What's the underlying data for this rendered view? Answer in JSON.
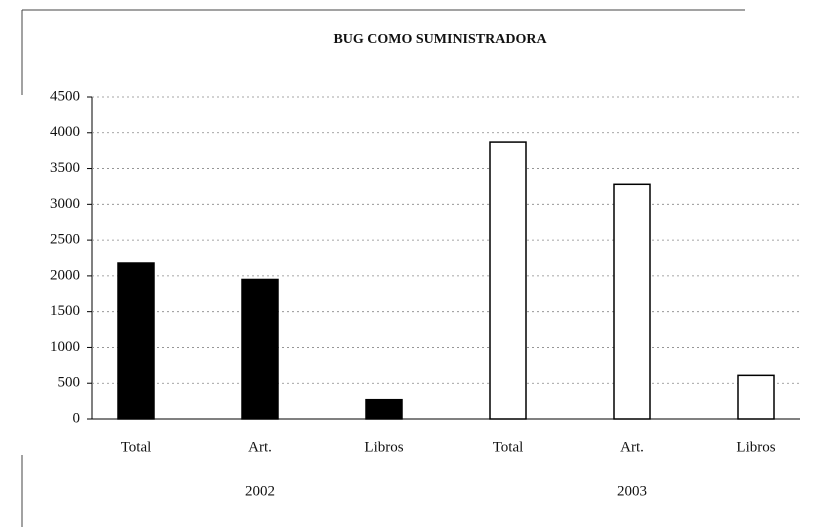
{
  "chart_data": {
    "type": "bar",
    "title": "BUG COMO SUMINISTRADORA",
    "groups": [
      {
        "label": "2002",
        "color": "#000000",
        "categories": [
          "Total",
          "Art.",
          "Libros"
        ],
        "values": [
          2180,
          1950,
          270
        ]
      },
      {
        "label": "2003",
        "color": "#ffffff",
        "categories": [
          "Total",
          "Art.",
          "Libros"
        ],
        "values": [
          3870,
          3280,
          610
        ]
      }
    ],
    "ylim": [
      0,
      4500
    ],
    "yticks": [
      0,
      500,
      1000,
      1500,
      2000,
      2500,
      3000,
      3500,
      4000,
      4500
    ],
    "grid": true
  }
}
